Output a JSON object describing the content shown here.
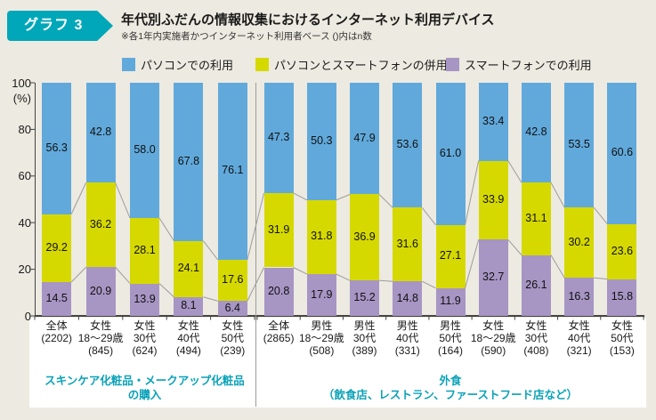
{
  "header": {
    "badge": "グラフ 3",
    "title": "年代別ふだんの情報収集におけるインターネット利用デバイス",
    "note": "※各1年内実施者かつインターネット利用者ベース ()内はn数"
  },
  "legend": [
    {
      "key": "pc",
      "label": "パソコンでの利用"
    },
    {
      "key": "both",
      "label": "パソコンとスマートフォンの併用"
    },
    {
      "key": "sp",
      "label": "スマートフォンでの利用"
    }
  ],
  "colors": {
    "bar_pc": "#61A9DB",
    "bar_both": "#D6D900",
    "bar_sp": "#A795C4",
    "accent_teal": "#00A7B8",
    "group_label_teal": "#0AA2B8",
    "background": "#EDEAE1",
    "panel": "#FFFFFF",
    "connector": "#9C9C9C",
    "axis": "#444444"
  },
  "chart_data": {
    "type": "bar",
    "subtype": "stacked-100",
    "unit": "(%)",
    "ylim": [
      0,
      100
    ],
    "yticks": [
      0,
      20,
      40,
      60,
      80,
      100
    ],
    "legend_position": "top",
    "series": [
      {
        "key": "pc",
        "name": "パソコンでの利用"
      },
      {
        "key": "both",
        "name": "パソコンとスマートフォンの併用"
      },
      {
        "key": "sp",
        "name": "スマートフォンでの利用"
      }
    ],
    "stack_order_bottom_to_top": [
      "sp",
      "both",
      "pc"
    ],
    "groups": [
      {
        "label_lines": [
          "スキンケア化粧品・メークアップ化粧品",
          "の購入"
        ],
        "bars": [
          {
            "cat": [
              "全体",
              "(2202)"
            ],
            "pc": 56.3,
            "both": 29.2,
            "sp": 14.5
          },
          {
            "cat": [
              "女性",
              "18〜29歳",
              "(845)"
            ],
            "pc": 42.8,
            "both": 36.2,
            "sp": 20.9
          },
          {
            "cat": [
              "女性",
              "30代",
              "(624)"
            ],
            "pc": 58.0,
            "both": 28.1,
            "sp": 13.9
          },
          {
            "cat": [
              "女性",
              "40代",
              "(494)"
            ],
            "pc": 67.8,
            "both": 24.1,
            "sp": 8.1
          },
          {
            "cat": [
              "女性",
              "50代",
              "(239)"
            ],
            "pc": 76.1,
            "both": 17.6,
            "sp": 6.4
          }
        ]
      },
      {
        "label_lines": [
          "外食",
          "（飲食店、レストラン、ファーストフード店など）"
        ],
        "bars": [
          {
            "cat": [
              "全体",
              "(2865)"
            ],
            "pc": 47.3,
            "both": 31.9,
            "sp": 20.8
          },
          {
            "cat": [
              "男性",
              "18〜29歳",
              "(508)"
            ],
            "pc": 50.3,
            "both": 31.8,
            "sp": 17.9
          },
          {
            "cat": [
              "男性",
              "30代",
              "(389)"
            ],
            "pc": 47.9,
            "both": 36.9,
            "sp": 15.2
          },
          {
            "cat": [
              "男性",
              "40代",
              "(331)"
            ],
            "pc": 53.6,
            "both": 31.6,
            "sp": 14.8
          },
          {
            "cat": [
              "男性",
              "50代",
              "(164)"
            ],
            "pc": 61.0,
            "both": 27.1,
            "sp": 11.9
          },
          {
            "cat": [
              "女性",
              "18〜29歳",
              "(590)"
            ],
            "pc": 33.4,
            "both": 33.9,
            "sp": 32.7
          },
          {
            "cat": [
              "女性",
              "30代",
              "(408)"
            ],
            "pc": 42.8,
            "both": 31.1,
            "sp": 26.1
          },
          {
            "cat": [
              "女性",
              "40代",
              "(321)"
            ],
            "pc": 53.5,
            "both": 30.2,
            "sp": 16.3
          },
          {
            "cat": [
              "女性",
              "50代",
              "(153)"
            ],
            "pc": 60.6,
            "both": 23.6,
            "sp": 15.8
          }
        ]
      }
    ]
  }
}
